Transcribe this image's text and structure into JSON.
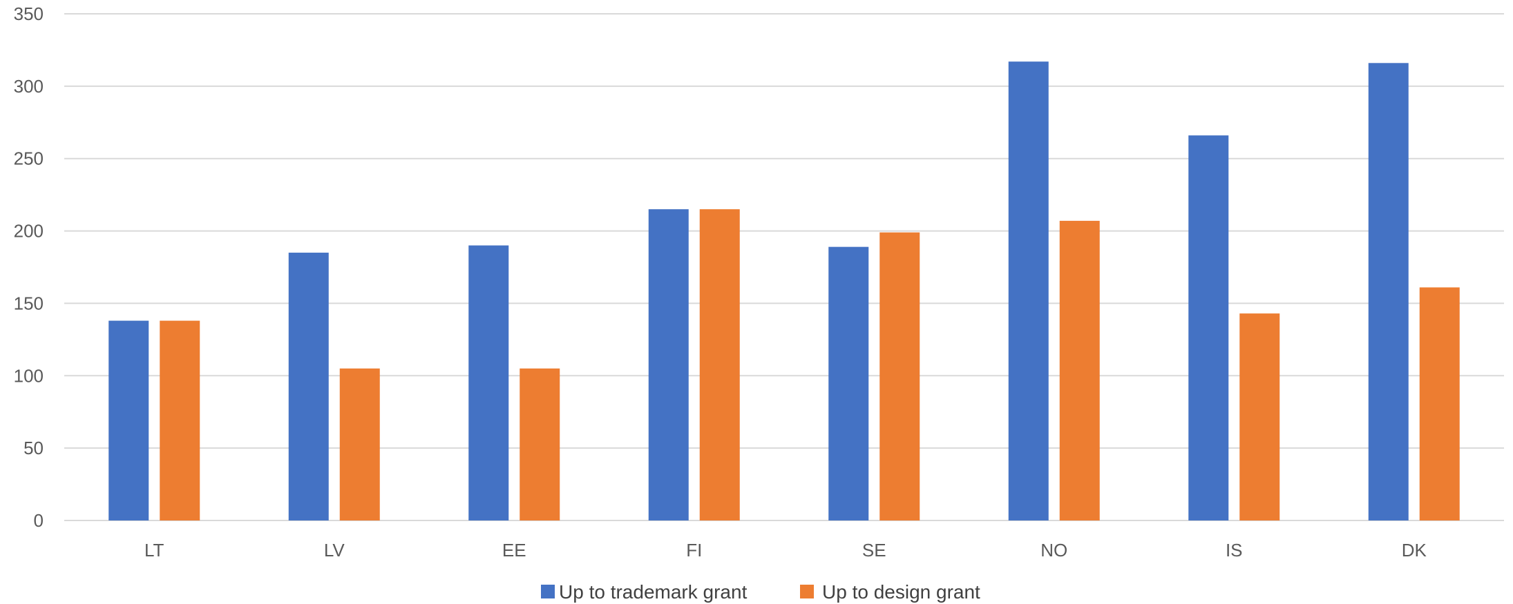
{
  "chart_data": {
    "type": "bar",
    "title": "",
    "xlabel": "",
    "ylabel": "",
    "categories": [
      "LT",
      "LV",
      "EE",
      "FI",
      "SE",
      "NO",
      "IS",
      "DK"
    ],
    "series": [
      {
        "name": "Up to trademark grant",
        "color": "#4472C4",
        "values": [
          138,
          185,
          190,
          215,
          189,
          317,
          266,
          316
        ]
      },
      {
        "name": "Up to design grant",
        "color": "#ED7D31",
        "values": [
          138,
          105,
          105,
          215,
          199,
          207,
          143,
          161
        ]
      }
    ],
    "ylim": [
      0,
      350
    ],
    "yticks": [
      "0",
      "50",
      "100",
      "150",
      "200",
      "250",
      "300",
      "350"
    ],
    "grid": true,
    "legend_position": "bottom-center"
  }
}
